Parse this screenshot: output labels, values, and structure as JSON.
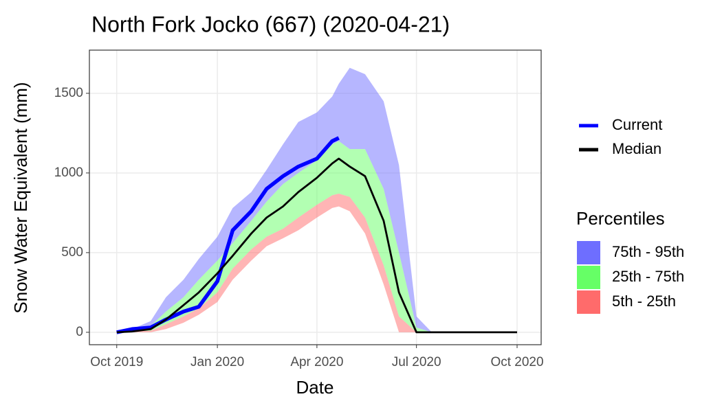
{
  "chart_data": {
    "type": "ribbon",
    "title": "North Fork Jocko (667) (2020-04-21)",
    "x_label": "Date",
    "y_label": "Snow Water Equivalent (mm)",
    "x": [
      "2019-10-01",
      "2019-10-15",
      "2019-11-01",
      "2019-11-15",
      "2019-12-01",
      "2019-12-15",
      "2020-01-01",
      "2020-01-15",
      "2020-02-01",
      "2020-02-15",
      "2020-03-01",
      "2020-03-15",
      "2020-04-01",
      "2020-04-15",
      "2020-04-21",
      "2020-05-01",
      "2020-05-15",
      "2020-06-01",
      "2020-06-15",
      "2020-07-01",
      "2020-07-15",
      "2020-08-01",
      "2020-09-01",
      "2020-10-01"
    ],
    "xlim": [
      "2019-09-06",
      "2020-10-23"
    ],
    "xticks": [
      {
        "value": "2019-10-01",
        "label": "Oct 2019"
      },
      {
        "value": "2020-01-01",
        "label": "Jan 2020"
      },
      {
        "value": "2020-04-01",
        "label": "Apr 2020"
      },
      {
        "value": "2020-07-01",
        "label": "Jul 2020"
      },
      {
        "value": "2020-10-01",
        "label": "Oct 2020"
      }
    ],
    "ylim": [
      -78,
      1771
    ],
    "yticks": [
      0,
      500,
      1000,
      1500
    ],
    "grid": true,
    "legend_title": "Percentiles",
    "bands": [
      {
        "name": "75th - 95th",
        "color": "#6e6eff",
        "lower": [
          0,
          10,
          40,
          130,
          220,
          330,
          450,
          560,
          700,
          820,
          930,
          1000,
          1080,
          1180,
          1200,
          1150,
          1150,
          900,
          500,
          30,
          0,
          0,
          0,
          0
        ],
        "upper": [
          0,
          20,
          70,
          220,
          330,
          460,
          600,
          780,
          880,
          1020,
          1180,
          1320,
          1380,
          1480,
          1560,
          1660,
          1620,
          1450,
          1050,
          100,
          0,
          0,
          0,
          0
        ]
      },
      {
        "name": "25th - 75th",
        "color": "#66ff66",
        "lower": [
          0,
          5,
          10,
          50,
          100,
          150,
          250,
          400,
          520,
          600,
          650,
          720,
          800,
          860,
          870,
          850,
          720,
          420,
          100,
          0,
          0,
          0,
          0,
          0
        ],
        "upper": [
          0,
          10,
          40,
          130,
          220,
          330,
          450,
          560,
          700,
          820,
          930,
          1000,
          1080,
          1180,
          1200,
          1150,
          1150,
          900,
          500,
          30,
          0,
          0,
          0,
          0
        ]
      },
      {
        "name": "5th - 25th",
        "color": "#ff6b6b",
        "lower": [
          0,
          0,
          0,
          20,
          60,
          110,
          190,
          330,
          450,
          540,
          590,
          640,
          720,
          780,
          790,
          760,
          620,
          300,
          0,
          0,
          0,
          0,
          0,
          0
        ],
        "upper": [
          0,
          5,
          10,
          50,
          100,
          150,
          250,
          400,
          520,
          600,
          650,
          720,
          800,
          860,
          870,
          850,
          720,
          420,
          100,
          0,
          0,
          0,
          0,
          0
        ]
      }
    ],
    "series": [
      {
        "name": "Current",
        "color": "#0000ff",
        "values": [
          0,
          20,
          30,
          80,
          130,
          160,
          320,
          640,
          760,
          900,
          980,
          1040,
          1090,
          1200,
          1220,
          null,
          null,
          null,
          null,
          null,
          null,
          null,
          null,
          null
        ]
      },
      {
        "name": "Median",
        "color": "#000000",
        "values": [
          0,
          5,
          20,
          80,
          170,
          250,
          370,
          480,
          620,
          720,
          790,
          880,
          970,
          1060,
          1090,
          1040,
          980,
          700,
          250,
          0,
          0,
          0,
          0,
          0
        ]
      }
    ]
  }
}
